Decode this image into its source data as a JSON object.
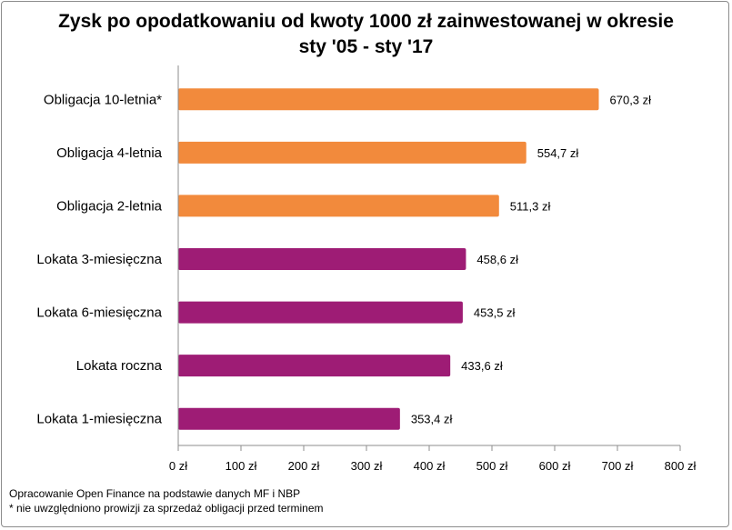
{
  "title": {
    "line1": "Zysk po opodatkowaniu od kwoty 1000 zł zainwestowanej w okresie",
    "line2": "sty '05 - sty '17"
  },
  "chart_data": {
    "type": "bar",
    "orientation": "horizontal",
    "categories": [
      "Obligacja 10-letnia*",
      "Obligacja 4-letnia",
      "Obligacja 2-letnia",
      "Lokata 3-miesięczna",
      "Lokata 6-miesięczna",
      "Lokata roczna",
      "Lokata 1-miesięczna"
    ],
    "values": [
      670.3,
      554.7,
      511.3,
      458.6,
      453.5,
      433.6,
      353.4
    ],
    "value_labels": [
      "670,3 zł",
      "554,7 zł",
      "511,3 zł",
      "458,6 zł",
      "453,5 zł",
      "433,6 zł",
      "353,4 zł"
    ],
    "bar_colors": [
      "#f28a3c",
      "#f28a3c",
      "#f28a3c",
      "#9e1c75",
      "#9e1c75",
      "#9e1c75",
      "#9e1c75"
    ],
    "xlim": [
      0,
      800
    ],
    "xticks": [
      0,
      100,
      200,
      300,
      400,
      500,
      600,
      700,
      800
    ],
    "xtick_labels": [
      "0 zł",
      "100 zł",
      "200 zł",
      "300 zł",
      "400 zł",
      "500 zł",
      "600 zł",
      "700 zł",
      "800 zł"
    ],
    "grid": false,
    "legend": "none"
  },
  "footnotes": {
    "source": "Opracowanie Open Finance na podstawie danych MF i NBP",
    "note": "* nie uwzględniono prowizji za sprzedaż obligacji przed terminem"
  }
}
